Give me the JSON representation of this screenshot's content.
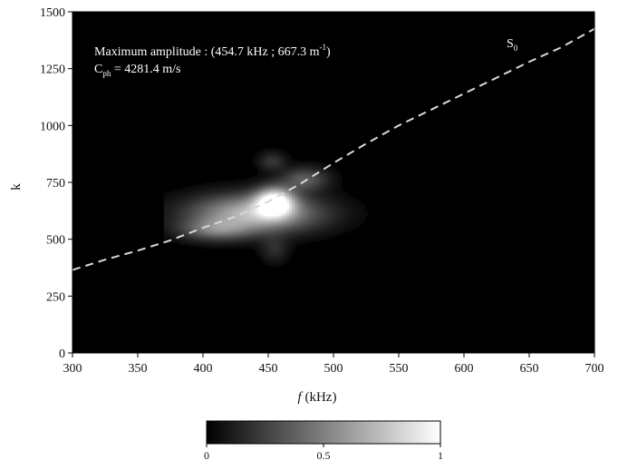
{
  "chart_data": {
    "type": "heatmap",
    "xlabel": "f (kHz)",
    "xlabel_italic_part": "f",
    "xlabel_rest": " (kHz)",
    "ylabel": "k",
    "xlim": [
      300,
      700
    ],
    "ylim": [
      0,
      1500
    ],
    "x_ticks": [
      "300",
      "350",
      "400",
      "450",
      "500",
      "550",
      "600",
      "650",
      "700"
    ],
    "y_ticks": [
      "0",
      "250",
      "500",
      "750",
      "1000",
      "1250",
      "1500"
    ],
    "colormap": "grayscale",
    "background_color": "#000000",
    "curve_color": "#d8d8d8",
    "annotations": {
      "line1_prefix": "Maximum amplitude : (454.7 kHz ; 667.3 m",
      "line1_sup": "-1",
      "line1_suffix": ")",
      "line2_prefix": "C",
      "line2_sub": "ph",
      "line2_suffix": " = 4281.4 m/s"
    },
    "maximum": {
      "f": 454.7,
      "k": 667.3
    },
    "series": [
      {
        "name": "S0",
        "label_main": "S",
        "label_sub": "0",
        "style": "dashed",
        "x": [
          300,
          325,
          350,
          375,
          400,
          425,
          450,
          475,
          500,
          525,
          550,
          575,
          600,
          625,
          650,
          675,
          700
        ],
        "y": [
          365,
          410,
          450,
          495,
          550,
          600,
          665,
          745,
          835,
          920,
          1000,
          1070,
          1140,
          1210,
          1280,
          1345,
          1425
        ]
      }
    ],
    "blobs": [
      {
        "f": 455,
        "k": 665,
        "sigma_f": 10,
        "sigma_k": 42,
        "amplitude": 1.0
      },
      {
        "f": 440,
        "k": 615,
        "sigma_f": 32,
        "sigma_k": 55,
        "amplitude": 0.7
      },
      {
        "f": 410,
        "k": 545,
        "sigma_f": 18,
        "sigma_k": 32,
        "amplitude": 0.35
      },
      {
        "f": 478,
        "k": 765,
        "sigma_f": 12,
        "sigma_k": 35,
        "amplitude": 0.3
      },
      {
        "f": 453,
        "k": 845,
        "sigma_f": 7,
        "sigma_k": 28,
        "amplitude": 0.16
      },
      {
        "f": 455,
        "k": 460,
        "sigma_f": 7,
        "sigma_k": 40,
        "amplitude": 0.13
      }
    ],
    "colorbar": {
      "min": 0,
      "max": 1,
      "ticks": [
        "0",
        "0.5",
        "1"
      ]
    }
  }
}
